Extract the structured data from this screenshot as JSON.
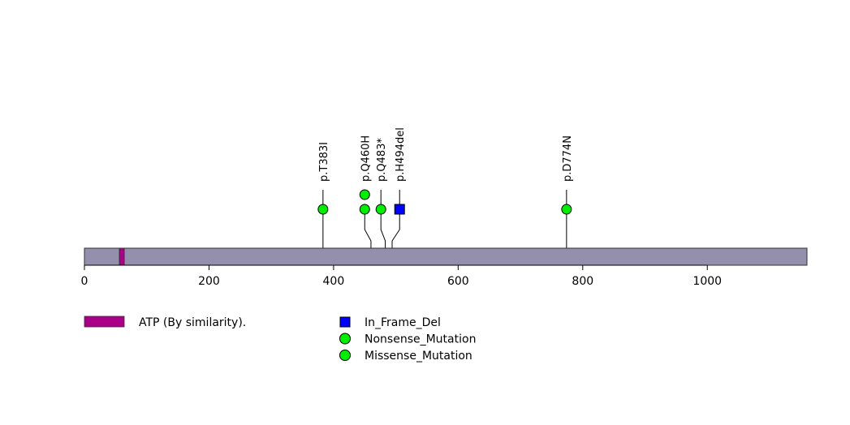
{
  "chart_data": {
    "type": "lollipop",
    "protein_length": 1160,
    "axis": {
      "range": [
        0,
        1160
      ],
      "ticks": [
        0,
        200,
        400,
        600,
        800,
        1000
      ]
    },
    "domains": [
      {
        "name": "ATP (By similarity).",
        "start": 56,
        "end": 64,
        "color": "#aa0088"
      }
    ],
    "mutations": [
      {
        "label": "p.T383I",
        "position": 383,
        "marker_position": 383,
        "type": "Missense_Mutation",
        "count": 1
      },
      {
        "label": "p.Q460H",
        "position": 460,
        "marker_position": 450,
        "type": "Missense_Mutation",
        "count": 2
      },
      {
        "label": "p.Q483*",
        "position": 483,
        "marker_position": 476,
        "type": "Nonsense_Mutation",
        "count": 1
      },
      {
        "label": "p.H494del",
        "position": 494,
        "marker_position": 506,
        "type": "In_Frame_Del",
        "count": 1
      },
      {
        "label": "p.D774N",
        "position": 774,
        "marker_position": 774,
        "type": "Missense_Mutation",
        "count": 1
      }
    ],
    "legend": {
      "domains": [
        {
          "label": "ATP (By similarity).",
          "color": "#aa0088"
        }
      ],
      "mutation_types": [
        {
          "label": "In_Frame_Del",
          "shape": "square",
          "color": "#0000ff"
        },
        {
          "label": "Nonsense_Mutation",
          "shape": "circle",
          "color": "#00ee00"
        },
        {
          "label": "Missense_Mutation",
          "shape": "circle",
          "color": "#00ee00"
        }
      ]
    },
    "colors": {
      "backbone": "#938fad",
      "circle": "#00ee00",
      "square": "#0000ff"
    }
  }
}
